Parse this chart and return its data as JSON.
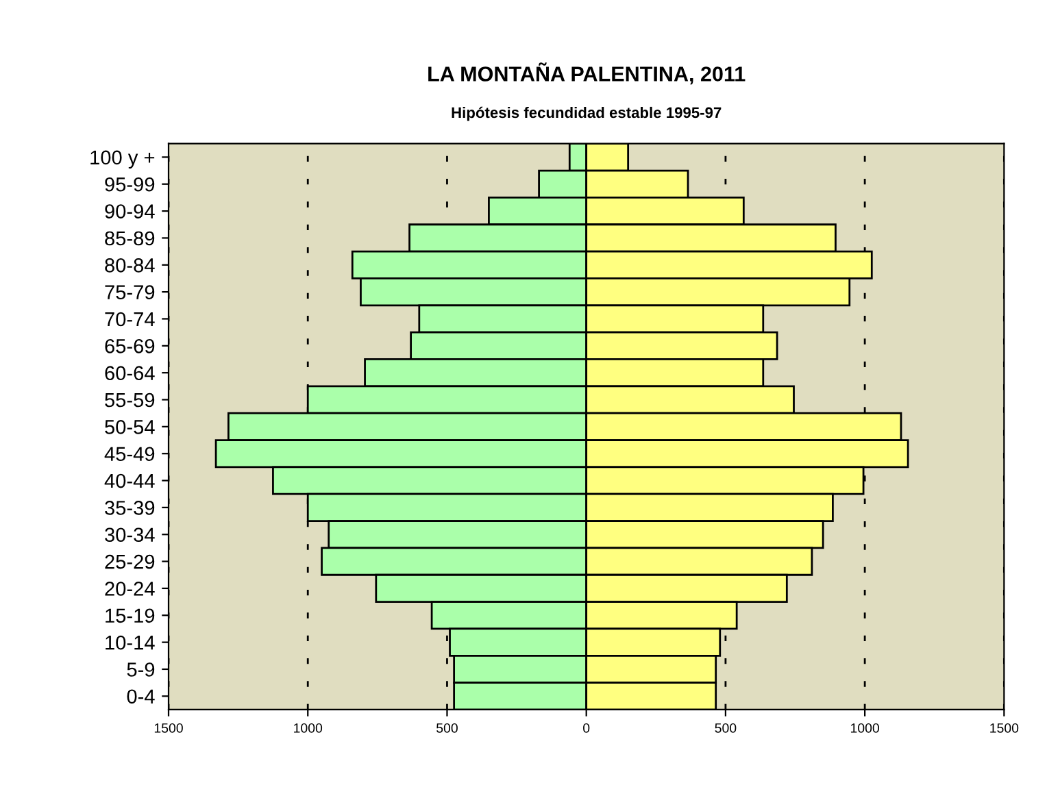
{
  "chart_data": {
    "type": "bar",
    "orientation": "horizontal",
    "title": "LA MONTAÑA PALENTINA, 2011",
    "subtitle": "Hipótesis fecundidad estable 1995-97",
    "categories": [
      "100 y +",
      "95-99",
      "90-94",
      "85-89",
      "80-84",
      "75-79",
      "70-74",
      "65-69",
      "60-64",
      "55-59",
      "50-54",
      "45-49",
      "40-44",
      "35-39",
      "30-34",
      "25-29",
      "20-24",
      "15-19",
      "10-14",
      "5-9",
      "0-4"
    ],
    "series": [
      {
        "color": "#aaffaa",
        "values": [
          -60,
          -170,
          -350,
          -635,
          -840,
          -810,
          -600,
          -630,
          -795,
          -1000,
          -1285,
          -1330,
          -1125,
          -1000,
          -925,
          -950,
          -755,
          -555,
          -490,
          -475,
          -475
        ]
      },
      {
        "color": "#ffff80",
        "values": [
          150,
          365,
          565,
          895,
          1025,
          945,
          635,
          685,
          635,
          745,
          1130,
          1155,
          995,
          885,
          850,
          810,
          720,
          540,
          480,
          465,
          465
        ]
      }
    ],
    "xlim": [
      -1500,
      1500
    ],
    "xticks": [
      {
        "value": -1500,
        "label": "1500"
      },
      {
        "value": -1000,
        "label": "1000"
      },
      {
        "value": -500,
        "label": "500"
      },
      0,
      500,
      1000,
      1500
    ],
    "grid": "x",
    "stacked": true
  }
}
